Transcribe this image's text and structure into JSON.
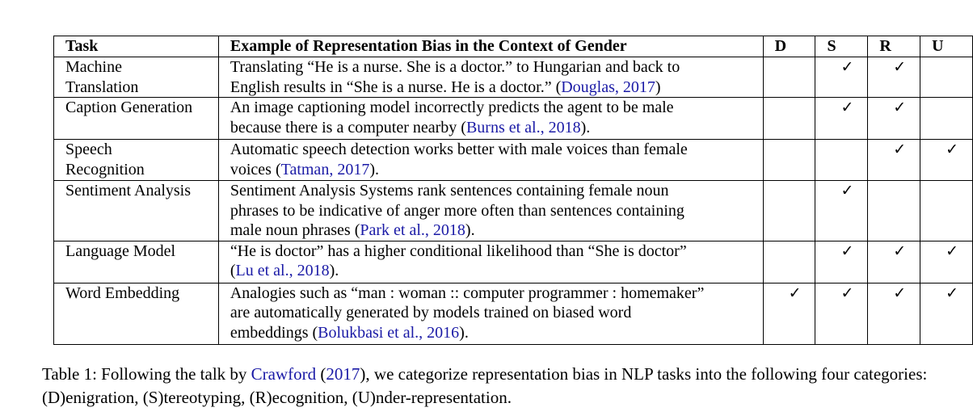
{
  "table": {
    "headers": {
      "task": "Task",
      "example": "Example of Representation Bias in the Context of Gender",
      "d": "D",
      "s": "S",
      "r": "R",
      "u": "U"
    },
    "check_mark": "✓",
    "rows": [
      {
        "task": [
          "Machine",
          "Translation"
        ],
        "example_lines": [
          "Translating “He is a nurse. She is a doctor.” to Hungarian and back to",
          "English results in “She is a nurse. He is a doctor.” ("
        ],
        "cite": "Douglas, 2017",
        "cite_after": ")",
        "d": "",
        "s": "✓",
        "r": "✓",
        "u": ""
      },
      {
        "task": [
          "Caption Generation",
          ""
        ],
        "example_lines": [
          "An image captioning model incorrectly predicts the agent to be male",
          "because there is a computer nearby ("
        ],
        "cite": "Burns et al., 2018",
        "cite_after": ").",
        "d": "",
        "s": "✓",
        "r": "✓",
        "u": ""
      },
      {
        "task": [
          "Speech",
          "Recognition"
        ],
        "example_lines": [
          "Automatic speech detection works better with male voices than female",
          "voices ("
        ],
        "cite": "Tatman, 2017",
        "cite_after": ").",
        "d": "",
        "s": "",
        "r": "✓",
        "u": "✓"
      },
      {
        "task": [
          "Sentiment Analysis",
          ""
        ],
        "example_lines": [
          "Sentiment Analysis Systems rank sentences containing female noun",
          "phrases to be indicative of anger more often than sentences containing",
          "male noun phrases ("
        ],
        "cite": "Park et al., 2018",
        "cite_after": ").",
        "d": "",
        "s": "✓",
        "r": "",
        "u": ""
      },
      {
        "task": [
          "Language Model",
          ""
        ],
        "example_lines": [
          "“He is doctor” has a higher conditional likelihood than “She is doctor”",
          "("
        ],
        "cite": "Lu et al., 2018",
        "cite_after": ").",
        "d": "",
        "s": "✓",
        "r": "✓",
        "u": "✓"
      },
      {
        "task": [
          "Word Embedding",
          ""
        ],
        "example_lines": [
          "Analogies such as “man : woman :: computer programmer : homemaker”",
          "are automatically generated by models trained on biased word",
          "embeddings ("
        ],
        "cite": "Bolukbasi et al., 2016",
        "cite_after": ").",
        "d": "✓",
        "s": "✓",
        "r": "✓",
        "u": "✓"
      }
    ]
  },
  "caption": {
    "prefix": "Table 1: Following the talk by ",
    "cite_name": "Crawford",
    "paren_open": " (",
    "cite_year": "2017",
    "paren_close": ")",
    "suffix": ", we categorize representation bias in NLP tasks into the following four categories: (D)enigration, (S)tereotyping, (R)ecognition, (U)nder-representation."
  },
  "colors": {
    "citation": "#1a1aa6",
    "text": "#000000",
    "border": "#000000"
  }
}
